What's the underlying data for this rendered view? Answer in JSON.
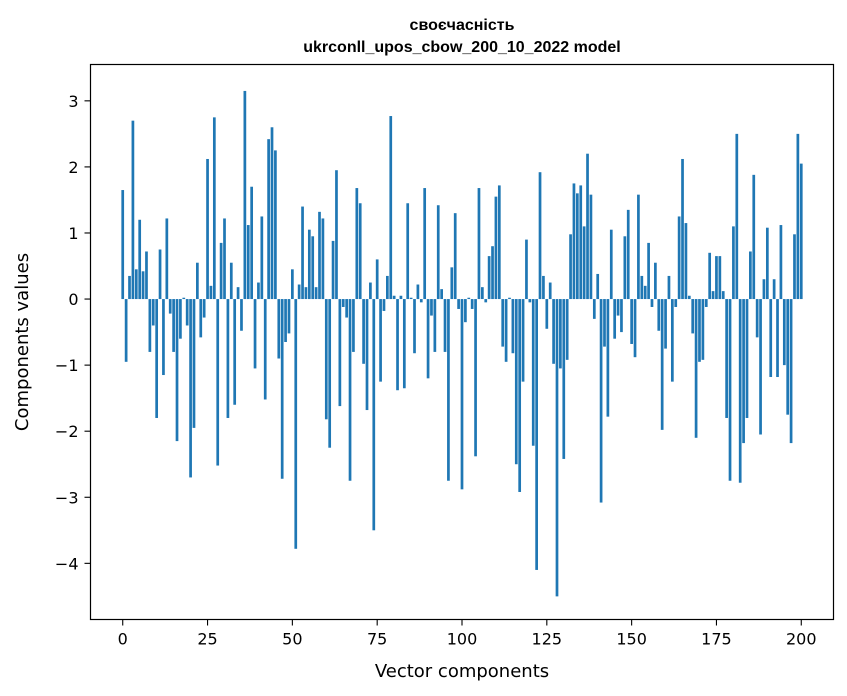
{
  "chart_data": {
    "type": "bar",
    "title": "своєчасність",
    "subtitle": "ukrconll_upos_cbow_200_10_2022 model",
    "xlabel": "Vector components",
    "ylabel": "Components values",
    "xlim": [
      -9.5,
      209.5
    ],
    "ylim": [
      -4.85,
      3.55
    ],
    "xticks": [
      0,
      25,
      50,
      75,
      100,
      125,
      150,
      175,
      200
    ],
    "xtick_labels": [
      "0",
      "25",
      "50",
      "75",
      "100",
      "125",
      "150",
      "175",
      "200"
    ],
    "yticks": [
      3,
      2,
      1,
      0,
      -1,
      -2,
      -3,
      -4
    ],
    "ytick_labels": [
      "3",
      "2",
      "1",
      "0",
      "−1",
      "−2",
      "−3",
      "−4"
    ],
    "grid": false,
    "legend": "none",
    "bar_color": "#1f77b4",
    "values": [
      1.65,
      -0.95,
      0.35,
      2.7,
      0.45,
      1.2,
      0.42,
      0.72,
      -0.8,
      -0.4,
      -1.8,
      0.75,
      -1.15,
      1.22,
      -0.22,
      -0.8,
      -2.15,
      -0.6,
      0.02,
      -0.4,
      -2.7,
      -1.95,
      0.55,
      -0.58,
      -0.28,
      2.12,
      0.2,
      2.75,
      -2.52,
      0.85,
      1.22,
      -1.8,
      0.55,
      -1.6,
      0.18,
      -0.48,
      3.15,
      1.12,
      1.7,
      -1.05,
      0.25,
      1.25,
      -1.52,
      2.42,
      2.6,
      2.25,
      -0.9,
      -2.72,
      -0.65,
      -0.52,
      0.45,
      -3.78,
      0.22,
      1.4,
      0.18,
      1.05,
      0.95,
      0.18,
      1.32,
      1.22,
      -1.82,
      -2.25,
      0.88,
      1.95,
      -1.62,
      -0.12,
      -0.28,
      -2.75,
      -0.8,
      1.68,
      1.45,
      -0.98,
      -1.68,
      0.25,
      -3.5,
      0.6,
      -1.25,
      -0.18,
      0.35,
      2.77,
      0.05,
      -1.38,
      0.05,
      -1.35,
      1.45,
      0.02,
      -0.82,
      0.22,
      -0.05,
      1.68,
      -1.2,
      -0.25,
      -0.8,
      1.42,
      0.15,
      -0.8,
      -2.75,
      0.48,
      1.3,
      -0.15,
      -2.88,
      -0.35,
      0.02,
      -0.15,
      -2.38,
      1.68,
      0.18,
      -0.05,
      0.65,
      0.8,
      1.55,
      1.72,
      -0.72,
      -0.95,
      0.02,
      -0.82,
      -2.5,
      -2.92,
      -1.25,
      0.9,
      -0.05,
      -2.22,
      -4.1,
      1.92,
      0.35,
      -0.45,
      0.25,
      -0.98,
      -4.5,
      -1.05,
      -2.42,
      -0.92,
      0.98,
      1.75,
      1.6,
      1.72,
      1.1,
      2.2,
      1.58,
      -0.3,
      0.38,
      -3.08,
      -0.72,
      -1.78,
      1.05,
      -0.6,
      -0.25,
      -0.5,
      0.95,
      1.35,
      -0.68,
      -0.88,
      1.58,
      0.35,
      0.2,
      0.85,
      -0.12,
      0.55,
      -0.48,
      -1.98,
      -0.75,
      0.35,
      -1.25,
      -0.12,
      1.25,
      2.12,
      1.15,
      0.05,
      -0.52,
      -2.1,
      -0.95,
      -0.92,
      -0.12,
      0.7,
      0.12,
      0.65,
      0.65,
      0.12,
      -1.8,
      -2.75,
      1.1,
      2.5,
      -2.78,
      -2.18,
      -1.8,
      0.72,
      1.88,
      -0.58,
      -2.05,
      0.3,
      1.08,
      -1.18,
      0.3,
      -1.18,
      1.12,
      -1.0,
      -1.75,
      -2.18,
      0.98,
      2.5,
      2.05
    ]
  }
}
